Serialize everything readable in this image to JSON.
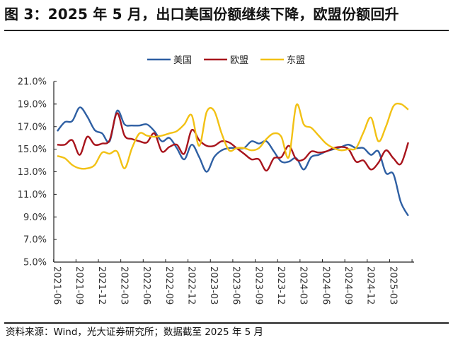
{
  "title": "图 3：2025 年 5 月，出口美国份额继续下降，欧盟份额回升",
  "source": "资料来源：Wind，光大证券研究所；数据截至 2025 年 5 月",
  "chart_data": {
    "type": "line",
    "title": "",
    "xlabel": "",
    "ylabel": "",
    "ylim": [
      5.0,
      21.0
    ],
    "yticks": [
      "5.0%",
      "7.0%",
      "9.0%",
      "11.0%",
      "13.0%",
      "15.0%",
      "17.0%",
      "19.0%",
      "21.0%"
    ],
    "xticks": [
      "2021-06",
      "2021-09",
      "2021-12",
      "2022-03",
      "2022-06",
      "2022-09",
      "2022-12",
      "2023-03",
      "2023-06",
      "2023-09",
      "2023-12",
      "2024-03",
      "2024-06",
      "2024-09",
      "2024-12",
      "2025-03"
    ],
    "x_start": "2021-06",
    "x_end": "2025-05",
    "grid": false,
    "legend_position": "top",
    "series": [
      {
        "name": "美国",
        "color": "#2E5FA3",
        "values": [
          16.6,
          17.4,
          17.5,
          18.7,
          17.9,
          16.7,
          16.4,
          15.7,
          18.4,
          17.2,
          17.1,
          17.1,
          17.2,
          16.6,
          15.7,
          16.0,
          15.1,
          14.1,
          15.4,
          14.3,
          13.0,
          14.3,
          14.9,
          15.1,
          15.1,
          15.1,
          15.7,
          15.5,
          15.7,
          14.8,
          13.9,
          13.9,
          14.2,
          13.2,
          14.3,
          14.5,
          14.8,
          15.0,
          15.2,
          15.4,
          15.1,
          15.1,
          14.5,
          14.8,
          12.9,
          12.8,
          10.3,
          9.1
        ]
      },
      {
        "name": "欧盟",
        "color": "#A8141C",
        "values": [
          15.4,
          15.4,
          15.8,
          14.5,
          16.1,
          15.4,
          15.5,
          15.8,
          18.2,
          16.2,
          15.9,
          15.7,
          15.6,
          16.4,
          14.8,
          15.2,
          15.4,
          14.6,
          16.7,
          15.8,
          15.3,
          15.3,
          15.7,
          15.6,
          15.1,
          14.6,
          14.1,
          14.1,
          13.1,
          14.2,
          14.3,
          15.3,
          14.1,
          14.1,
          14.8,
          14.7,
          14.8,
          15.1,
          15.2,
          15.0,
          13.9,
          14.0,
          13.2,
          13.8,
          14.9,
          14.2,
          13.7,
          15.6
        ]
      },
      {
        "name": "东盟",
        "color": "#F2C114",
        "values": [
          14.4,
          14.2,
          13.6,
          13.3,
          13.3,
          13.6,
          14.7,
          14.6,
          14.8,
          13.3,
          15.1,
          16.4,
          16.2,
          16.1,
          16.2,
          16.4,
          16.6,
          17.2,
          18.0,
          15.3,
          18.3,
          18.4,
          16.4,
          14.9,
          15.1,
          15.1,
          14.9,
          15.1,
          15.9,
          16.4,
          16.1,
          14.3,
          18.9,
          17.2,
          16.9,
          16.2,
          15.5,
          15.1,
          14.9,
          15.0,
          15.1,
          16.5,
          17.8,
          15.7,
          17.0,
          18.8,
          19.0,
          18.5
        ]
      }
    ]
  }
}
